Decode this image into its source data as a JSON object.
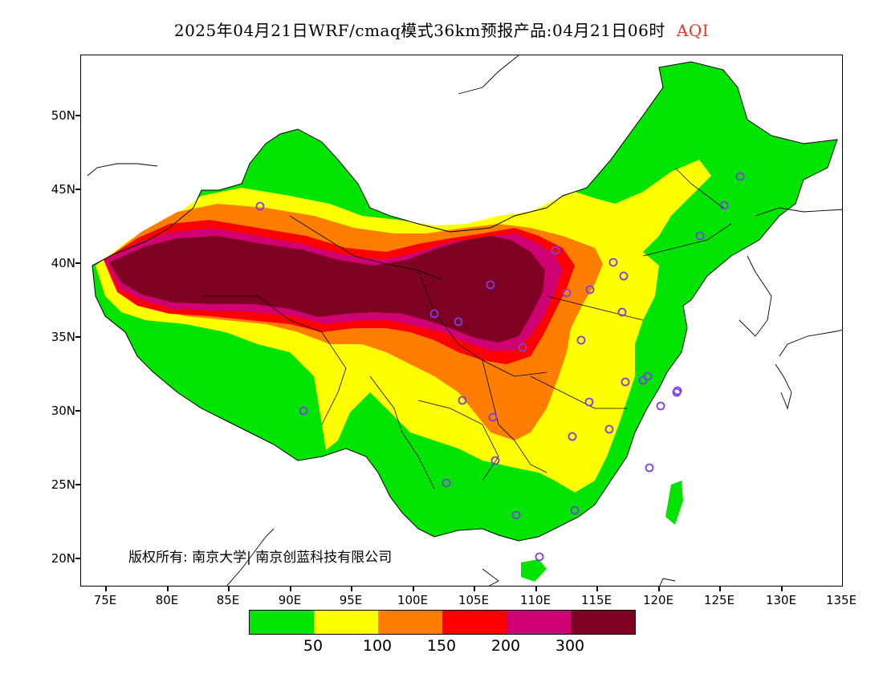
{
  "title": {
    "main": "2025年04月21日WRF/cmaq模式36km预报产品:04月21日06时",
    "variable": "AQI"
  },
  "axes": {
    "y_labels": [
      "50N",
      "45N",
      "40N",
      "35N",
      "30N",
      "25N",
      "20N"
    ],
    "x_labels": [
      "75E",
      "80E",
      "85E",
      "90E",
      "95E",
      "100E",
      "105E",
      "110E",
      "115E",
      "120E",
      "125E",
      "130E",
      "135E"
    ]
  },
  "copyright": "版权所有: 南京大学| 南京创蓝科技有限公司",
  "legend": {
    "colors": [
      "#00e400",
      "#ffff00",
      "#ff7e00",
      "#ff0000",
      "#d10072",
      "#7e0023"
    ],
    "labels": [
      "50",
      "100",
      "150",
      "200",
      "300"
    ]
  },
  "colors": {
    "good": "#00e400",
    "moderate": "#ffff00",
    "sensitive": "#ff7e00",
    "unhealthy": "#ff0000",
    "very_unhealthy": "#d10072",
    "hazardous": "#7e0023",
    "marker": "#7b3fe4",
    "title_accent": "#e8322a"
  }
}
